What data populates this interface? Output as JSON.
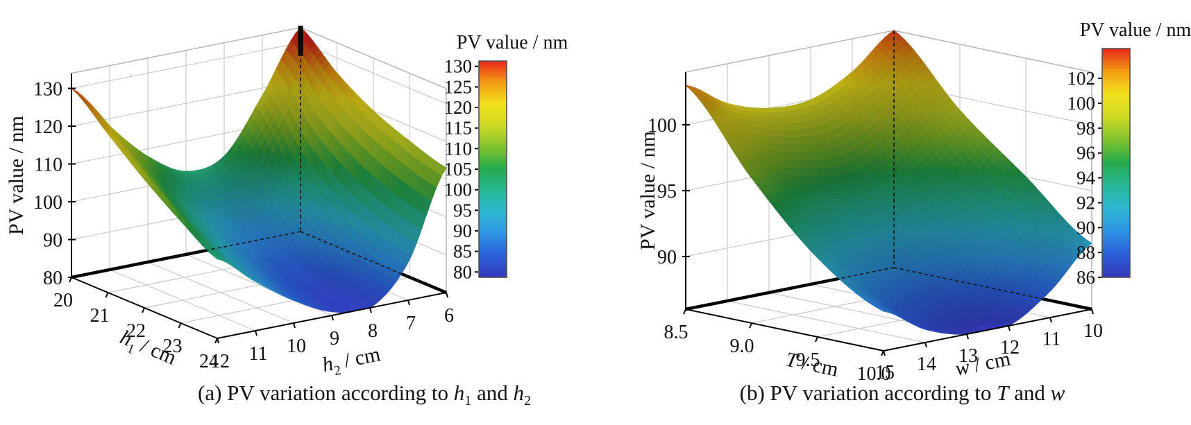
{
  "figure": {
    "background": "#ffffff",
    "panels": [
      {
        "id": "a",
        "caption": {
          "pre": "(a) PV variation according to ",
          "v1": "h",
          "s1": "1",
          "mid": " and ",
          "v2": "h",
          "s2": "2"
        }
      },
      {
        "id": "b",
        "caption": {
          "pre": "(b) PV variation according to ",
          "v1": "T",
          "s1": "",
          "mid": " and ",
          "v2": "w",
          "s2": ""
        }
      }
    ]
  },
  "colors": {
    "background": "#ffffff",
    "surface_colormap_jet": [
      "#3438b8",
      "#2b5fd9",
      "#2f93e4",
      "#2eb6d2",
      "#28b897",
      "#25aa4e",
      "#7fc32d",
      "#cdd824",
      "#f2e11c",
      "#f39d13",
      "#e6261b"
    ],
    "grid_line": "#c9c9c9",
    "box_edge": "#b5b5b5",
    "axis_line": "#000000",
    "text": "#111111",
    "floor_back_edge": "#000000",
    "projection_dash": "#1a1a1a",
    "colorbar_border": "#4a4a4a"
  },
  "chart_data": [
    {
      "type": "surface",
      "panel": "a",
      "title": "(a) PV variation according to h₁ and h₂",
      "x": {
        "name": "h1",
        "label": {
          "var": "h",
          "sub": "1",
          "unit": " / cm"
        },
        "ticks": [
          20,
          21,
          22,
          23,
          24
        ],
        "tick_labels": [
          "20",
          "21",
          "22",
          "23",
          "24"
        ],
        "range": [
          20,
          24
        ]
      },
      "y": {
        "name": "h2",
        "label": {
          "var": "h",
          "sub": "2",
          "unit": " / cm"
        },
        "ticks": [
          12,
          11,
          10,
          9,
          8,
          7,
          6
        ],
        "tick_labels": [
          "12",
          "11",
          "10",
          "9",
          "8",
          "7",
          "6"
        ],
        "range": [
          12,
          6
        ]
      },
      "z": {
        "label": "PV value / nm",
        "ticks": [
          80,
          90,
          100,
          110,
          120,
          130
        ],
        "tick_labels": [
          "80",
          "90",
          "100",
          "110",
          "120",
          "130"
        ],
        "range": [
          80,
          134
        ]
      },
      "colorbar": {
        "title": "PV value / nm",
        "ticks": [
          130,
          125,
          120,
          115,
          110,
          105,
          100,
          95,
          90,
          85,
          80
        ],
        "tick_labels": [
          "130",
          "125",
          "120",
          "115",
          "110",
          "105",
          "100",
          "95",
          "90",
          "85",
          "80"
        ],
        "range": [
          78.7,
          131.3
        ]
      },
      "surface": {
        "x_values": [
          20,
          21,
          22,
          23,
          24
        ],
        "y_values": [
          12,
          11,
          10,
          9,
          8,
          7,
          6
        ],
        "z_grid": [
          [
            130,
            118,
            108,
            102,
            104,
            118,
            134
          ],
          [
            122,
            110,
            100,
            93,
            92,
            105,
            126
          ],
          [
            114,
            103,
            94,
            87,
            85,
            97,
            120
          ],
          [
            107,
            97,
            89,
            83,
            81,
            92,
            116
          ],
          [
            101,
            93,
            86,
            81,
            80,
            90,
            113
          ]
        ],
        "z_min_estimate": 80,
        "z_max_estimate": 134
      }
    },
    {
      "type": "surface",
      "panel": "b",
      "title": "(b) PV variation according to T and w",
      "x": {
        "name": "T",
        "label": {
          "var": "T",
          "sub": "",
          "unit": " / cm"
        },
        "ticks": [
          8.5,
          9.0,
          9.5,
          10.0
        ],
        "tick_labels": [
          "8.5",
          "9.0",
          "9.5",
          "10.0"
        ],
        "range": [
          8.5,
          10.0
        ]
      },
      "y": {
        "name": "w",
        "label": {
          "var": "w",
          "sub": "",
          "unit": " / cm"
        },
        "ticks": [
          15,
          14,
          13,
          12,
          11,
          10
        ],
        "tick_labels": [
          "15",
          "14",
          "13",
          "12",
          "11",
          "10"
        ],
        "range": [
          15,
          10
        ]
      },
      "z": {
        "label": "PV value / nm",
        "ticks": [
          90,
          95,
          100
        ],
        "tick_labels": [
          "90",
          "95",
          "100"
        ],
        "range": [
          86,
          104
        ]
      },
      "colorbar": {
        "title": "PV value / nm",
        "ticks": [
          102,
          100,
          98,
          96,
          94,
          92,
          90,
          88,
          86
        ],
        "tick_labels": [
          "102",
          "100",
          "98",
          "96",
          "94",
          "92",
          "90",
          "88",
          "86"
        ],
        "range": [
          86,
          104.4
        ]
      },
      "surface": {
        "x_values": [
          8.5,
          9.0,
          9.5,
          10.0
        ],
        "y_values": [
          15,
          14,
          13,
          12,
          11,
          10
        ],
        "z_grid": [
          [
            103,
            101,
            100,
            100,
            101.5,
            104
          ],
          [
            97,
            95,
            94,
            94,
            96,
            99
          ],
          [
            92,
            90,
            89,
            89,
            91,
            95
          ],
          [
            89,
            87,
            86,
            86,
            88,
            91
          ]
        ],
        "z_min_estimate": 86,
        "z_max_estimate": 104
      }
    }
  ]
}
